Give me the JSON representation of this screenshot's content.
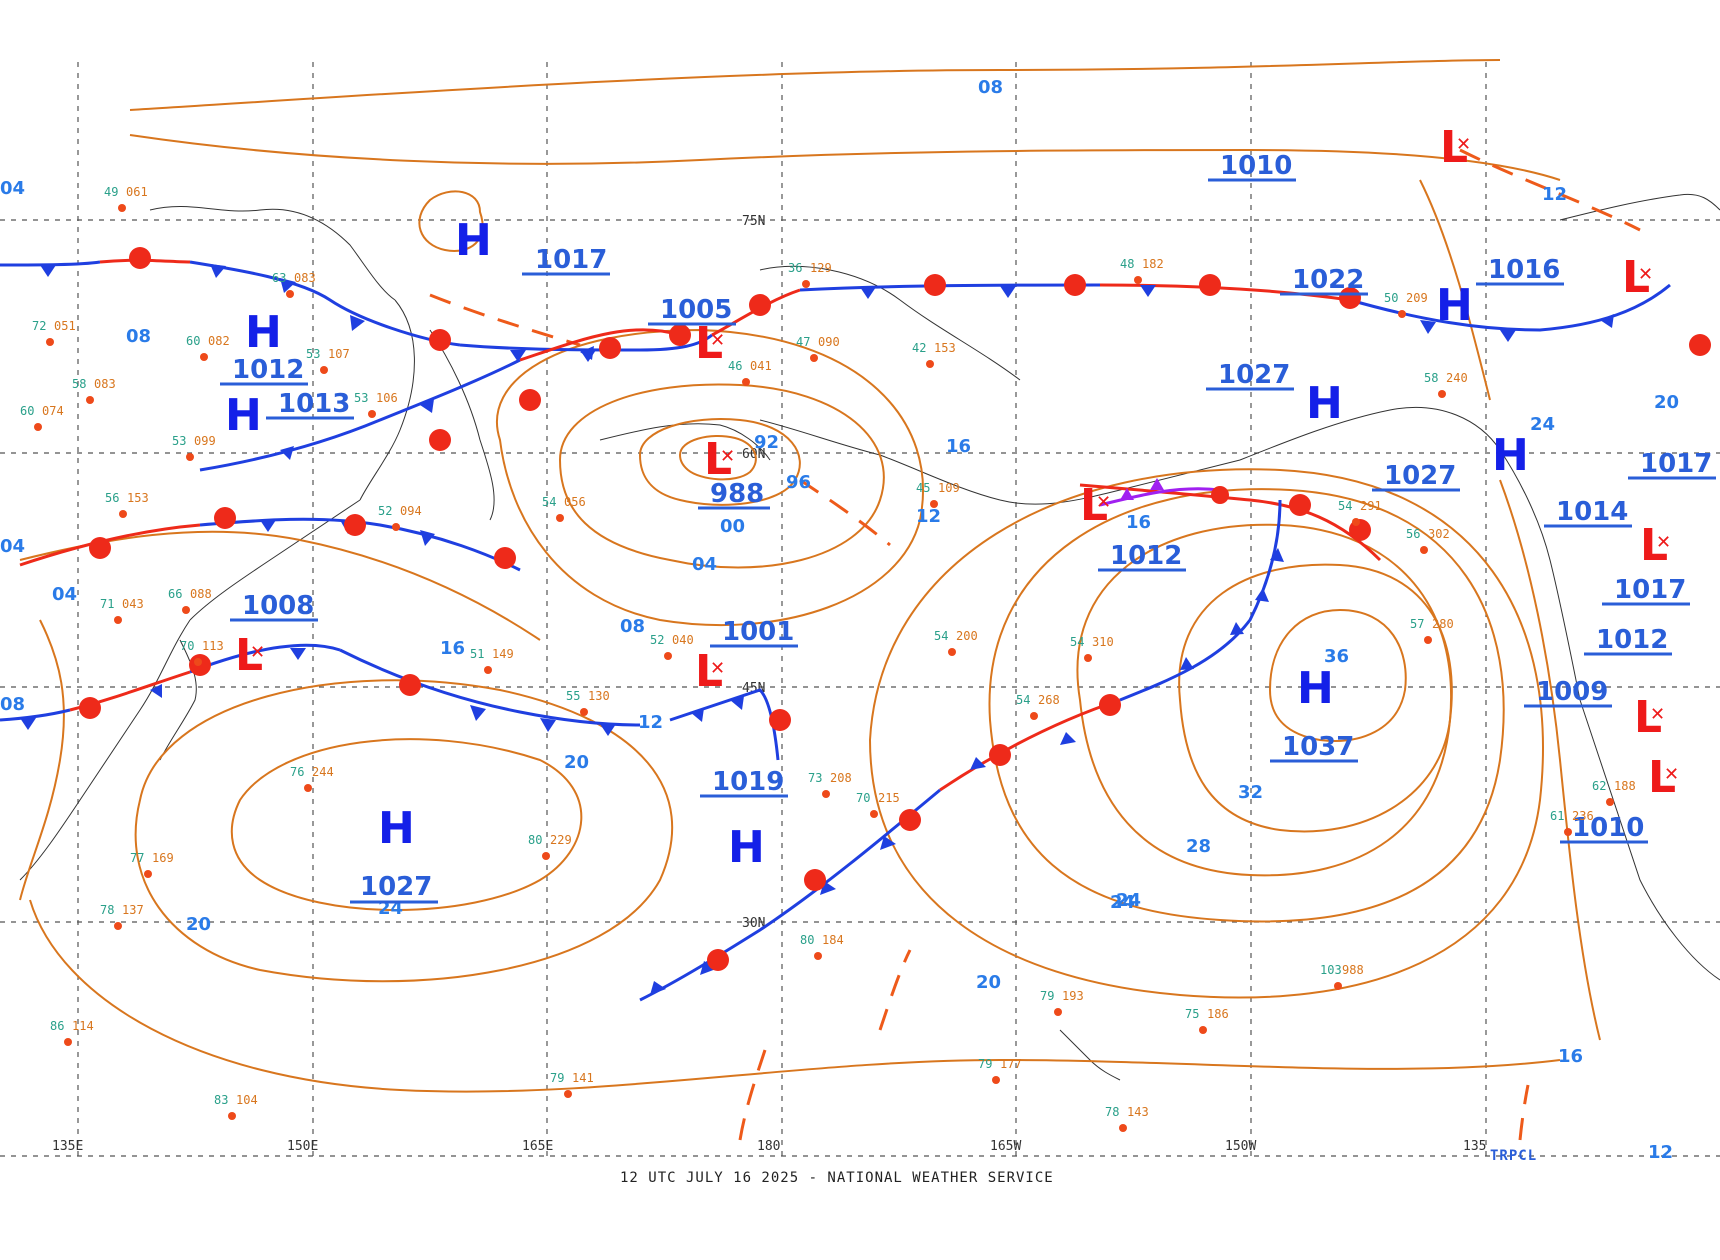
{
  "caption": "12 UTC JULY 16 2025 - NATIONAL WEATHER SERVICE",
  "credit": "TRPCL",
  "lat_labels": [
    "75N",
    "60N",
    "45N",
    "30N"
  ],
  "lon_labels": [
    "135E",
    "150E",
    "165E",
    "180",
    "165W",
    "150W",
    "135"
  ],
  "pressure_centers": [
    {
      "type": "H",
      "value": "1017"
    },
    {
      "type": "H",
      "value": "1012"
    },
    {
      "type": "H",
      "value": "1013"
    },
    {
      "type": "L",
      "value": "1005"
    },
    {
      "type": "L",
      "value": "988"
    },
    {
      "type": "L",
      "value": "1008"
    },
    {
      "type": "L",
      "value": "1001"
    },
    {
      "type": "H",
      "value": "1019"
    },
    {
      "type": "H",
      "value": "1027"
    },
    {
      "type": "L",
      "value": "1012"
    },
    {
      "type": "H",
      "value": "1037"
    },
    {
      "type": "H",
      "value": "1027"
    },
    {
      "type": "H",
      "value": "1022"
    },
    {
      "type": "H",
      "value": "1016"
    },
    {
      "type": "H",
      "value": "1027"
    },
    {
      "type": "L",
      "value": "1010"
    },
    {
      "type": "H",
      "value": "1017"
    },
    {
      "type": "L",
      "value": "1014"
    },
    {
      "type": "L",
      "value": "1017"
    },
    {
      "type": "L",
      "value": "1012"
    },
    {
      "type": "L",
      "value": "1009"
    },
    {
      "type": "L",
      "value": "1010"
    }
  ],
  "contour_labels": [
    "08",
    "12",
    "16",
    "20",
    "24",
    "28",
    "32",
    "36",
    "04",
    "00",
    "92",
    "96",
    "08",
    "12",
    "16",
    "20",
    "24",
    "16",
    "12",
    "20",
    "24",
    "16",
    "12",
    "20",
    "24",
    "04",
    "08",
    "04",
    "04",
    "08"
  ],
  "stations": [
    {
      "t": "49",
      "p": "061"
    },
    {
      "t": "72",
      "p": "051"
    },
    {
      "t": "60",
      "p": "082"
    },
    {
      "t": "58",
      "p": "083"
    },
    {
      "t": "60",
      "p": "074"
    },
    {
      "t": "53",
      "p": "099"
    },
    {
      "t": "56",
      "p": "153"
    },
    {
      "t": "63",
      "p": "083"
    },
    {
      "t": "53",
      "p": "107"
    },
    {
      "t": "53",
      "p": "106"
    },
    {
      "t": "52",
      "p": "094"
    },
    {
      "t": "54",
      "p": "056"
    },
    {
      "t": "36",
      "p": "129"
    },
    {
      "t": "47",
      "p": "090"
    },
    {
      "t": "46",
      "p": "041"
    },
    {
      "t": "42",
      "p": "153"
    },
    {
      "t": "45",
      "p": "109"
    },
    {
      "t": "54",
      "p": "200"
    },
    {
      "t": "54",
      "p": "310"
    },
    {
      "t": "54",
      "p": "268"
    },
    {
      "t": "73",
      "p": "208"
    },
    {
      "t": "70",
      "p": "215"
    },
    {
      "t": "80",
      "p": "184"
    },
    {
      "t": "79",
      "p": "193"
    },
    {
      "t": "75",
      "p": "186"
    },
    {
      "t": "79",
      "p": "177"
    },
    {
      "t": "79",
      "p": "141"
    },
    {
      "t": "78",
      "p": "143"
    },
    {
      "t": "48",
      "p": "182"
    },
    {
      "t": "50",
      "p": "209"
    },
    {
      "t": "58",
      "p": "240"
    },
    {
      "t": "54",
      "p": "291"
    },
    {
      "t": "56",
      "p": "302"
    },
    {
      "t": "57",
      "p": "280"
    },
    {
      "t": "62",
      "p": "188"
    },
    {
      "t": "61",
      "p": "236"
    },
    {
      "t": "76",
      "p": "244"
    },
    {
      "t": "77",
      "p": "169"
    },
    {
      "t": "78",
      "p": "137"
    },
    {
      "t": "86",
      "p": "114"
    },
    {
      "t": "83",
      "p": "104"
    },
    {
      "t": "80",
      "p": "229"
    },
    {
      "t": "55",
      "p": "130"
    },
    {
      "t": "52",
      "p": "040"
    },
    {
      "t": "51",
      "p": "149"
    },
    {
      "t": "70",
      "p": "113"
    },
    {
      "t": "71",
      "p": "043"
    },
    {
      "t": "66",
      "p": "088"
    },
    {
      "t": "103",
      "p": "988"
    }
  ]
}
